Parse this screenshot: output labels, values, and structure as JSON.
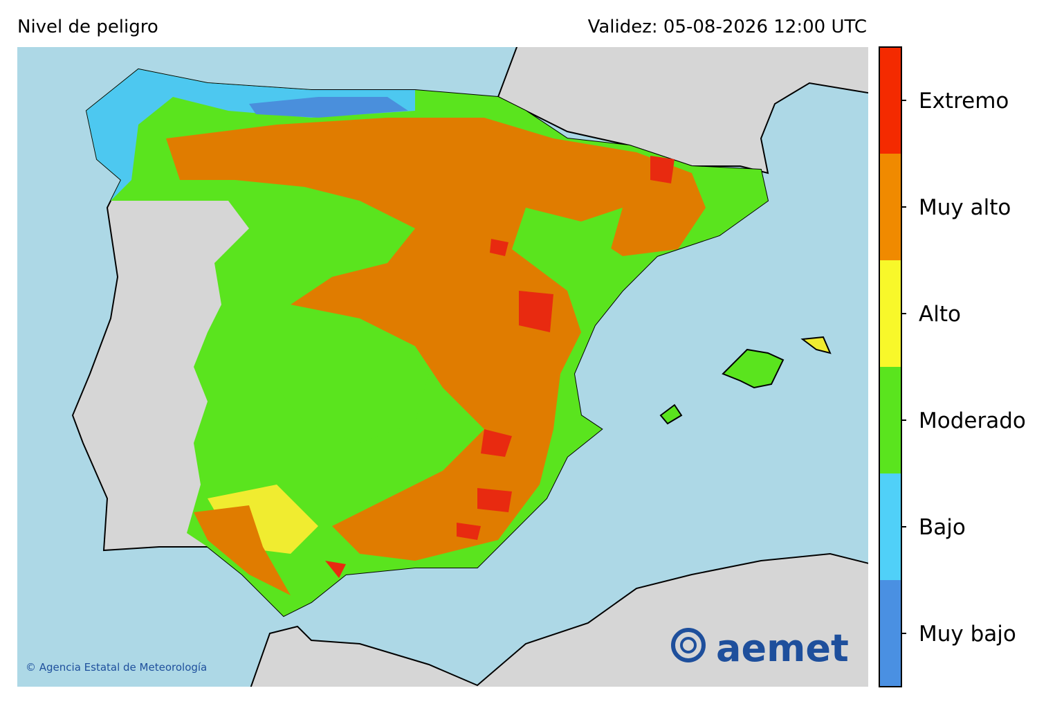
{
  "header": {
    "title": "Nivel de peligro",
    "validity": "Validez: 05-08-2026 12:00 UTC"
  },
  "legend": {
    "levels": [
      {
        "label": "Muy bajo",
        "color": "#4a90e2"
      },
      {
        "label": "Bajo",
        "color": "#50d0f8"
      },
      {
        "label": "Moderado",
        "color": "#5ae41e"
      },
      {
        "label": "Alto",
        "color": "#f8f82a"
      },
      {
        "label": "Muy alto",
        "color": "#f08a00"
      },
      {
        "label": "Extremo",
        "color": "#f42a00"
      }
    ]
  },
  "footer": {
    "copyright": "© Agencia Estatal de Meteorología",
    "logo": "aemet"
  }
}
